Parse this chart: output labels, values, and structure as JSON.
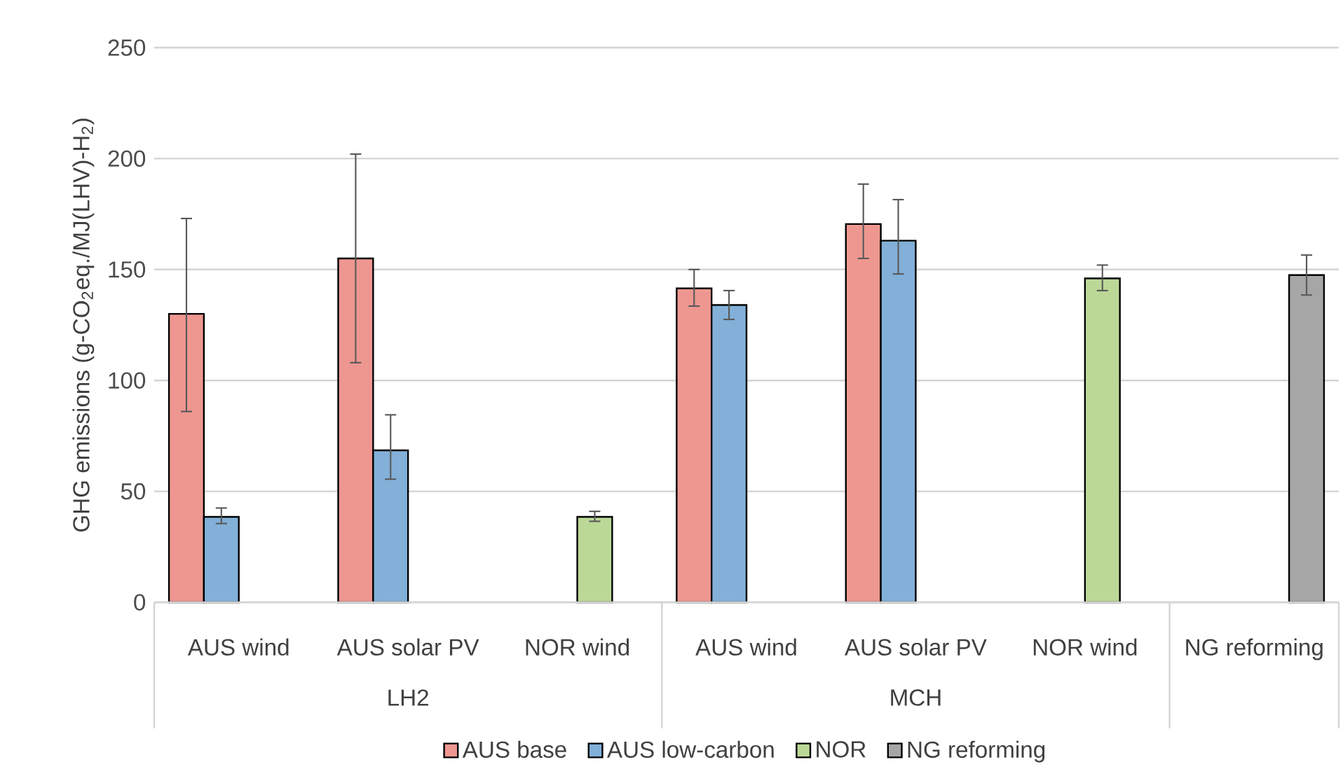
{
  "chart_data": {
    "type": "bar",
    "ylabel": "GHG emissions (g-CO$_{2}$eq./MJ(LHV)-H$_{2}$)",
    "categories": [
      "AUS wind",
      "AUS solar PV",
      "NOR wind",
      "AUS wind",
      "AUS solar PV",
      "NOR wind",
      "NG reforming"
    ],
    "annotations": [
      "LH2",
      "MCH"
    ],
    "series": [
      {
        "name": "AUS base",
        "color": "#ee9791",
        "values": [
          130,
          155,
          null,
          141.5,
          170.5,
          null,
          null
        ],
        "errors": [
          [
            86,
            173
          ],
          [
            108,
            202
          ],
          null,
          [
            133.5,
            150
          ],
          [
            155,
            188.5
          ],
          null,
          null
        ]
      },
      {
        "name": "AUS low-carbon",
        "color": "#82b0d8",
        "values": [
          38.5,
          68.5,
          null,
          134,
          163,
          null,
          null
        ],
        "errors": [
          [
            35.5,
            42.5
          ],
          [
            55.5,
            84.5
          ],
          null,
          [
            127.5,
            140.5
          ],
          [
            148,
            181.5
          ],
          null,
          null
        ]
      },
      {
        "name": "NOR",
        "color": "#bcd897",
        "values": [
          null,
          null,
          38.5,
          null,
          null,
          146,
          null
        ],
        "errors": [
          null,
          null,
          [
            36.5,
            41
          ],
          null,
          null,
          [
            140.5,
            152
          ],
          null
        ]
      },
      {
        "name": "NG reforming",
        "color": "#a6a6a6",
        "values": [
          null,
          null,
          null,
          null,
          null,
          null,
          147.5
        ],
        "errors": [
          null,
          null,
          null,
          null,
          null,
          null,
          [
            138.5,
            156.5
          ]
        ]
      }
    ],
    "ylim": [
      0,
      250
    ],
    "yticks": [
      0,
      50,
      100,
      150,
      200,
      250
    ],
    "grid": "y",
    "legend": "bottom"
  }
}
